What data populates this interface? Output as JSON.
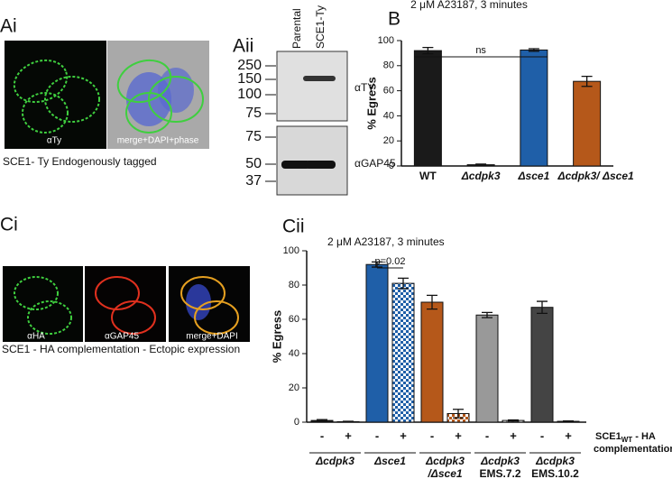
{
  "panel_a": {
    "label_i": "Ai",
    "image_label": "αTy",
    "image_label_2": "merge+DAPI+phase",
    "caption": "SCE1- Ty Endogenously tagged",
    "label_ii": "Aii",
    "lanes": [
      "Parental",
      "SCE1-Ty"
    ],
    "markers_top": [
      250,
      150,
      100,
      75
    ],
    "markers_bottom": [
      75,
      50,
      37
    ],
    "antibody_top": "αTY",
    "antibody_bottom": "αGAP45"
  },
  "panel_c": {
    "label_i": "Ci",
    "image_labels": [
      "αHA",
      "αGAP45",
      "merge+DAPI"
    ],
    "caption": "SCE1 - HA complementation - Ectopic expression"
  },
  "chart_data": [
    {
      "type": "bar",
      "panel": "B",
      "title": "2 μM A23187, 3 minutes",
      "ylabel": "% Egress",
      "categories": [
        "WT",
        "Δcdpk3",
        "Δsce1",
        "Δcdpk3/ Δsce1"
      ],
      "values": [
        92,
        1,
        92.5,
        67.5
      ],
      "errors": [
        2.5,
        0.5,
        1,
        4
      ],
      "colors": [
        "#1a1a1a",
        "#1a1a1a",
        "#1f5fa8",
        "#b5581a"
      ],
      "ylim": [
        0,
        100
      ],
      "yticks": [
        0,
        20,
        40,
        60,
        80,
        100
      ],
      "annotation": "ns"
    },
    {
      "type": "grouped_bar",
      "panel": "Cii",
      "title": "2 μM A23187, 3 minutes",
      "ylabel": "% Egress",
      "categories": [
        "-",
        "+",
        "-",
        "+",
        "-",
        "+",
        "-",
        "+",
        "-",
        "+"
      ],
      "values": [
        1,
        0.3,
        92,
        81,
        70,
        5,
        62.5,
        1,
        67,
        0.5
      ],
      "errors": [
        0.5,
        0.2,
        1.5,
        3,
        4,
        2.5,
        1.5,
        0.3,
        3.5,
        0.2
      ],
      "groups": [
        {
          "name": "Δcdpk3",
          "color": "#1a1a1a"
        },
        {
          "name": "Δsce1",
          "color": "#1f5fa8"
        },
        {
          "name": "Δcdpk3",
          "subname": "/Δsce1",
          "color": "#b5581a"
        },
        {
          "name": "Δcdpk3",
          "subname": "EMS.7.2",
          "color": "#999999"
        },
        {
          "name": "Δcdpk3",
          "subname": "EMS.10.2",
          "color": "#444444"
        }
      ],
      "legend": {
        "main": "SCE1",
        "sub": "WT",
        "rest": " - HA",
        "line2": "complementation"
      },
      "ylim": [
        0,
        100
      ],
      "yticks": [
        0,
        20,
        40,
        60,
        80,
        100
      ],
      "annotation": "p=0.02"
    }
  ]
}
